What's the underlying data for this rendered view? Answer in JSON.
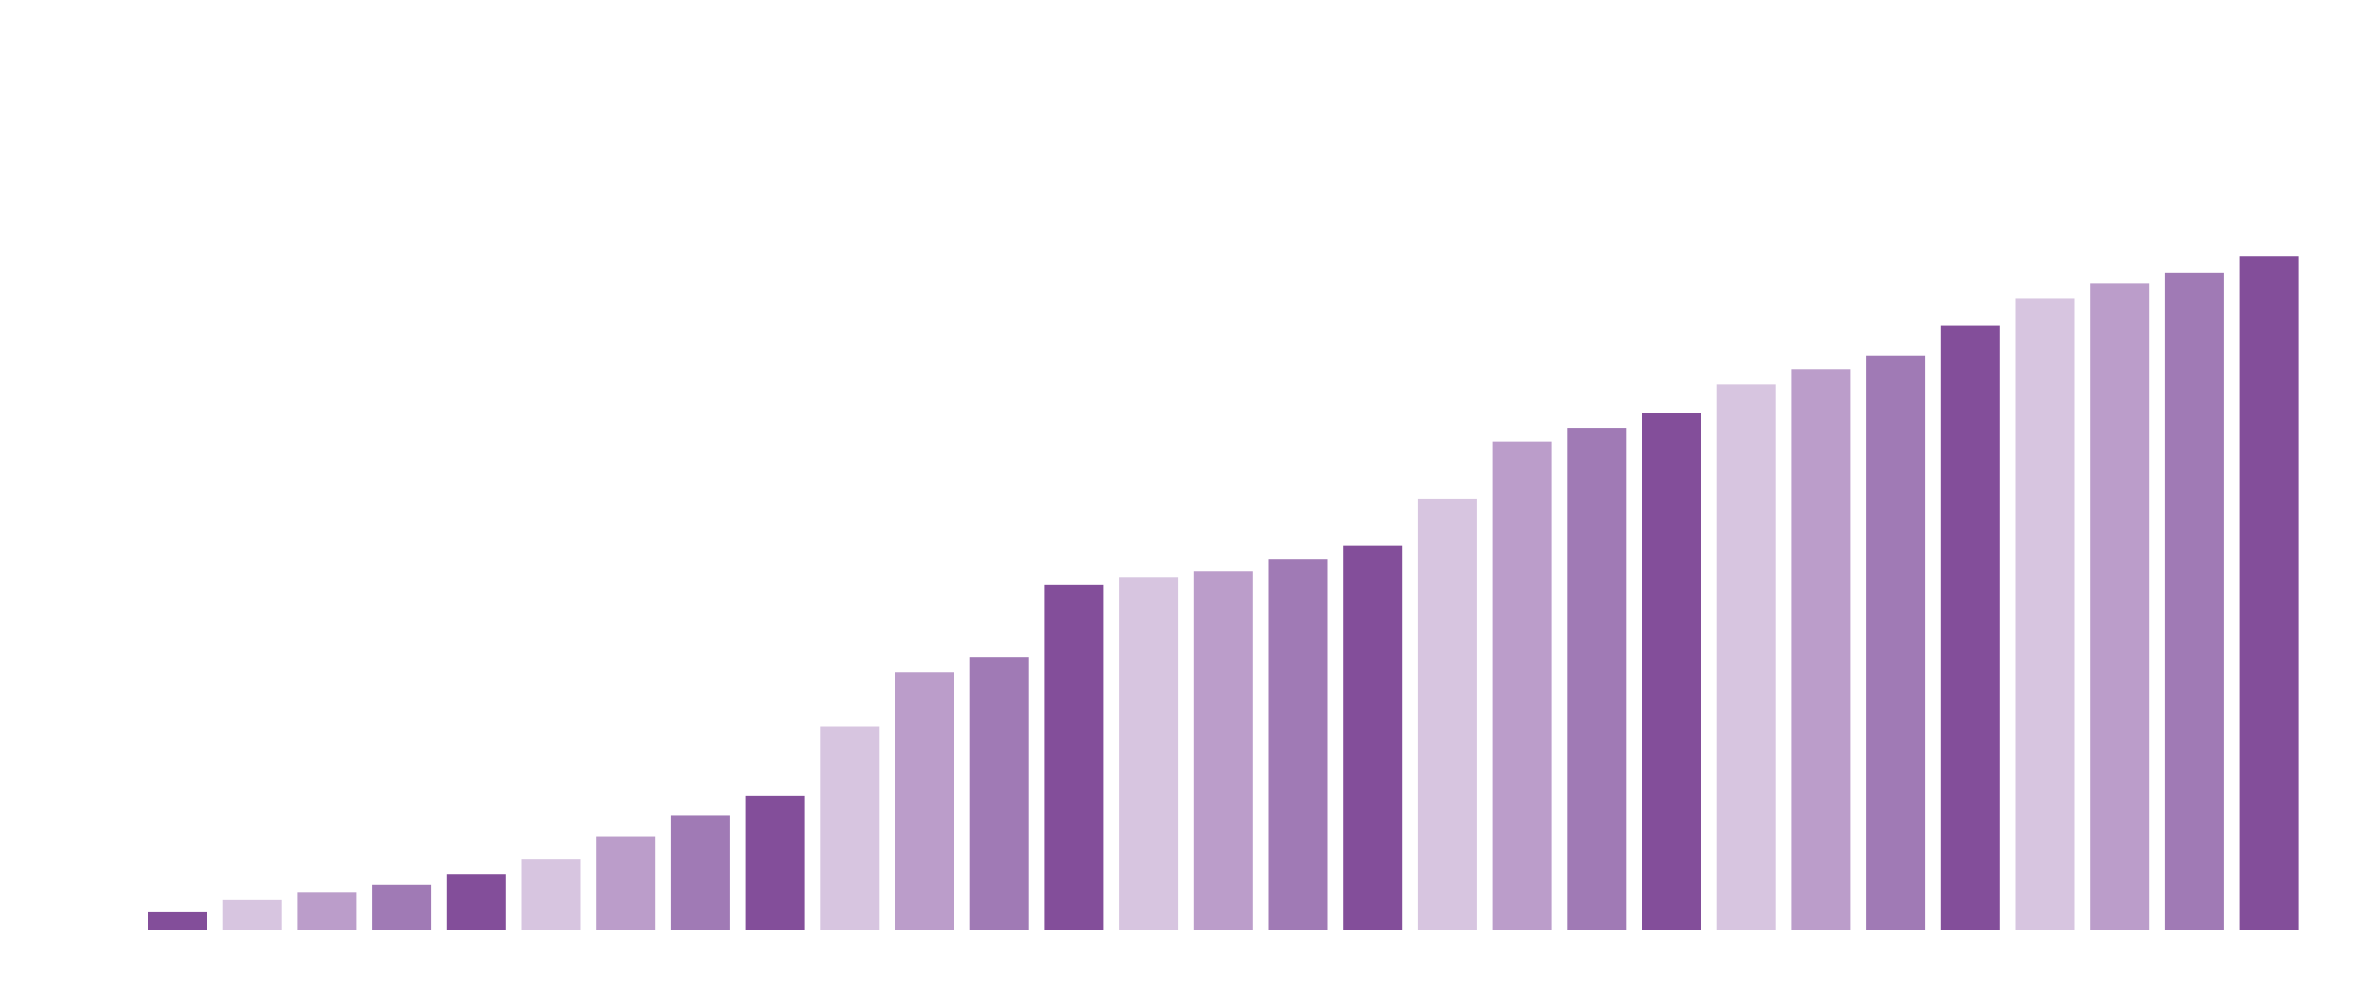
{
  "chart_data": {
    "type": "bar",
    "values": [
      12,
      20,
      25,
      30,
      37,
      47,
      62,
      76,
      89,
      135,
      171,
      181,
      229,
      234,
      238,
      246,
      255,
      286,
      324,
      333,
      343,
      362,
      372,
      381,
      401,
      419,
      429,
      436,
      447
    ],
    "colors": [
      "#834e9a",
      "#d7c5e0",
      "#bb9dca",
      "#a07ab5"
    ],
    "ylim": [
      0,
      617
    ]
  }
}
